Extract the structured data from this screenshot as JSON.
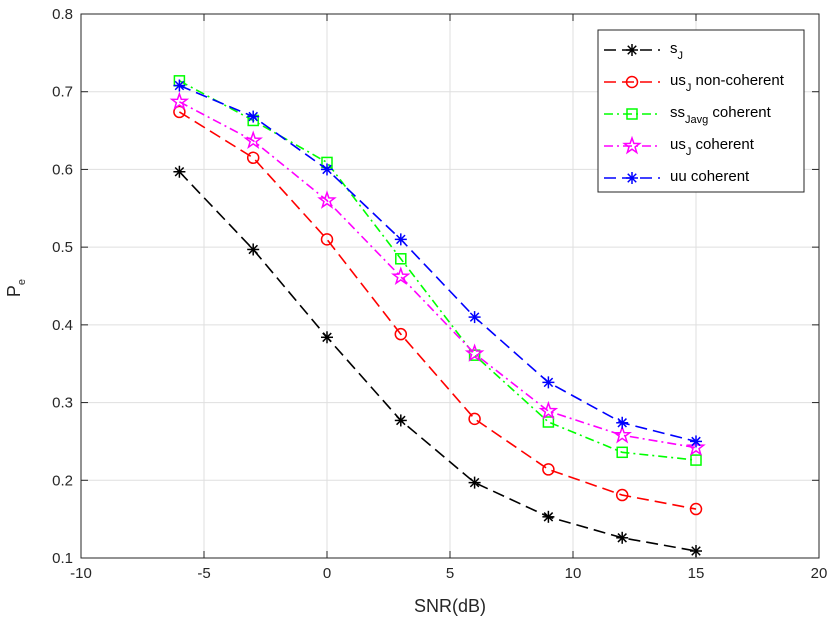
{
  "chart_data": {
    "type": "line",
    "title": "",
    "xlabel": "SNR(dB)",
    "ylabel": "P",
    "ylabel_sub": "e",
    "xlim": [
      -10,
      20
    ],
    "ylim": [
      0.1,
      0.8
    ],
    "xticks": [
      -10,
      -5,
      0,
      5,
      10,
      15,
      20
    ],
    "yticks": [
      0.1,
      0.2,
      0.3,
      0.4,
      0.5,
      0.6,
      0.7,
      0.8
    ],
    "xtick_labels": [
      "-10",
      "-5",
      "0",
      "5",
      "10",
      "15",
      "20"
    ],
    "ytick_labels": [
      "0.1",
      "0.2",
      "0.3",
      "0.4",
      "0.5",
      "0.6",
      "0.7",
      "0.8"
    ],
    "grid": true,
    "legend_position": "top-right",
    "x": [
      -6,
      -3,
      0,
      3,
      6,
      9,
      12,
      15
    ],
    "series": [
      {
        "name": "s_J",
        "label_main": "s",
        "label_sub": "J",
        "label_rest": "",
        "color": "#000000",
        "marker": "asterisk",
        "dash": "long-dash",
        "values": [
          0.597,
          0.497,
          0.384,
          0.277,
          0.197,
          0.153,
          0.126,
          0.109
        ]
      },
      {
        "name": "us_J non-coherent",
        "label_main": "us",
        "label_sub": "J",
        "label_rest": " non-coherent",
        "color": "#ff0000",
        "marker": "circle",
        "dash": "long-dash",
        "values": [
          0.674,
          0.615,
          0.51,
          0.388,
          0.279,
          0.214,
          0.181,
          0.163
        ]
      },
      {
        "name": "ss_Javg coherent",
        "label_main": "ss",
        "label_sub": "Javg",
        "label_rest": " coherent",
        "color": "#00ff00",
        "marker": "square",
        "dash": "dash-dot",
        "values": [
          0.714,
          0.663,
          0.609,
          0.485,
          0.361,
          0.275,
          0.236,
          0.226
        ]
      },
      {
        "name": "us_J coherent",
        "label_main": "us",
        "label_sub": "J",
        "label_rest": " coherent",
        "color": "#ff00ff",
        "marker": "pentagram",
        "dash": "dash-dot",
        "values": [
          0.687,
          0.637,
          0.56,
          0.462,
          0.363,
          0.289,
          0.258,
          0.242
        ]
      },
      {
        "name": "uu coherent",
        "label_main": "uu coherent",
        "label_sub": "",
        "label_rest": "",
        "color": "#0000ff",
        "marker": "asterisk",
        "dash": "long-dash",
        "values": [
          0.708,
          0.668,
          0.6,
          0.51,
          0.41,
          0.326,
          0.274,
          0.25
        ]
      }
    ]
  }
}
